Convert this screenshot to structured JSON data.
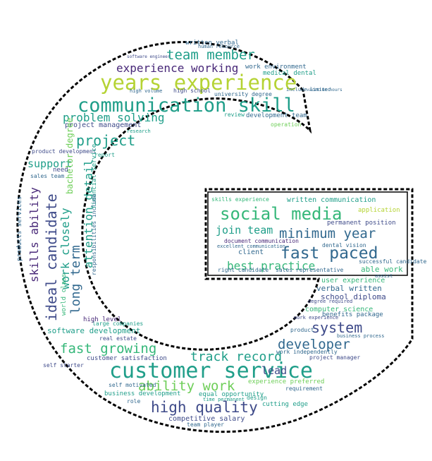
{
  "palette": {
    "yellowgreen": "#b5d334",
    "green": "#35b779",
    "teal": "#1f9e89",
    "blue": "#31688e",
    "navy": "#3e4a89",
    "purple": "#482878",
    "lime": "#6ece58"
  },
  "words": [
    {
      "text": "years experience",
      "color": "#b5d334"
    },
    {
      "text": "communication skill",
      "color": "#1f9e89"
    },
    {
      "text": "customer service",
      "color": "#1f9e89"
    },
    {
      "text": "social media",
      "color": "#35b779"
    },
    {
      "text": "fast paced",
      "color": "#31688e"
    },
    {
      "text": "team member",
      "color": "#1f9e89"
    },
    {
      "text": "experience working",
      "color": "#482878"
    },
    {
      "text": "high quality",
      "color": "#3e4a89"
    },
    {
      "text": "ability work",
      "color": "#6ece58"
    },
    {
      "text": "fast growing",
      "color": "#35b779"
    },
    {
      "text": "developer",
      "color": "#31688e"
    },
    {
      "text": "system",
      "color": "#3e4a89"
    },
    {
      "text": "track record",
      "color": "#1f9e89"
    },
    {
      "text": "minimum year",
      "color": "#31688e"
    },
    {
      "text": "join team",
      "color": "#1f9e89"
    },
    {
      "text": "best practice",
      "color": "#35b779"
    },
    {
      "text": "problem solving",
      "color": "#1f9e89"
    },
    {
      "text": "project",
      "color": "#1f9e89"
    },
    {
      "text": "ideal candidate",
      "color": "#3e4a89"
    },
    {
      "text": "long term",
      "color": "#31688e"
    },
    {
      "text": "work closely",
      "color": "#1f9e89"
    },
    {
      "text": "skills ability",
      "color": "#482878"
    },
    {
      "text": "attention detail",
      "color": "#1f9e89"
    },
    {
      "text": "support",
      "color": "#1f9e89"
    },
    {
      "text": "lead",
      "color": "#3e4a89"
    },
    {
      "text": "written verbal",
      "color": "#31688e"
    },
    {
      "text": "work environment",
      "color": "#31688e"
    },
    {
      "text": "medical dental",
      "color": "#1f9e89"
    },
    {
      "text": "project management",
      "color": "#3e4a89"
    },
    {
      "text": "development team",
      "color": "#31688e"
    },
    {
      "text": "software development",
      "color": "#1f9e89"
    },
    {
      "text": "competitive salary",
      "color": "#3e4a89"
    },
    {
      "text": "business development",
      "color": "#1f9e89"
    },
    {
      "text": "equal opportunity",
      "color": "#1f9e89"
    },
    {
      "text": "cutting edge",
      "color": "#1f9e89"
    },
    {
      "text": "team player",
      "color": "#31688e"
    },
    {
      "text": "written communication",
      "color": "#1f9e89"
    },
    {
      "text": "skills experience",
      "color": "#35b779"
    },
    {
      "text": "application",
      "color": "#b5d334"
    },
    {
      "text": "permanent position",
      "color": "#3e4a89"
    },
    {
      "text": "document communication",
      "color": "#482878"
    },
    {
      "text": "client",
      "color": "#31688e"
    },
    {
      "text": "dental vision",
      "color": "#31688e"
    },
    {
      "text": "able work",
      "color": "#35b779"
    },
    {
      "text": "user experience",
      "color": "#35b779"
    },
    {
      "text": "verbal written",
      "color": "#31688e"
    },
    {
      "text": "school diploma",
      "color": "#3e4a89"
    },
    {
      "text": "computer science",
      "color": "#35b779"
    },
    {
      "text": "benefits package",
      "color": "#31688e"
    },
    {
      "text": "customer satisfaction",
      "color": "#3e4a89"
    },
    {
      "text": "experience preferred",
      "color": "#6ece58"
    },
    {
      "text": "work independently",
      "color": "#31688e"
    },
    {
      "text": "project manager",
      "color": "#3e4a89"
    },
    {
      "text": "high school",
      "color": "#3e4a89"
    },
    {
      "text": "university degree",
      "color": "#31688e"
    },
    {
      "text": "review",
      "color": "#1f9e89"
    },
    {
      "text": "operation",
      "color": "#6ece58"
    },
    {
      "text": "product development",
      "color": "#3e4a89"
    },
    {
      "text": "report",
      "color": "#1f9e89"
    },
    {
      "text": "need",
      "color": "#3e4a89"
    },
    {
      "text": "sales team",
      "color": "#31688e"
    },
    {
      "text": "bachelor degree",
      "color": "#6ece58"
    },
    {
      "text": "financial service",
      "color": "#1f9e89"
    },
    {
      "text": "responsibilities include",
      "color": "#31688e"
    },
    {
      "text": "real estate",
      "color": "#3e4a89"
    },
    {
      "text": "large companies",
      "color": "#1f9e89"
    },
    {
      "text": "high level",
      "color": "#482878"
    },
    {
      "text": "world class",
      "color": "#35b779"
    },
    {
      "text": "self motivated",
      "color": "#31688e"
    },
    {
      "text": "self starter",
      "color": "#3e4a89"
    },
    {
      "text": "role",
      "color": "#31688e"
    },
    {
      "text": "design",
      "color": "#1f9e89"
    },
    {
      "text": "requirement",
      "color": "#31688e"
    },
    {
      "text": "product",
      "color": "#31688e"
    },
    {
      "text": "work experience",
      "color": "#3e4a89"
    },
    {
      "text": "degree required",
      "color": "#3e4a89"
    },
    {
      "text": "human resource",
      "color": "#31688e"
    },
    {
      "text": "software engineer",
      "color": "#3e4a89"
    },
    {
      "text": "sales representative",
      "color": "#31688e"
    },
    {
      "text": "right candidate",
      "color": "#31688e"
    },
    {
      "text": "excellent communication",
      "color": "#31688e"
    },
    {
      "text": "products services",
      "color": "#31688e"
    },
    {
      "text": "include limited",
      "color": "#31688e"
    },
    {
      "text": "vacation hours",
      "color": "#31688e"
    },
    {
      "text": "successful candidate",
      "color": "#31688e"
    },
    {
      "text": "assist",
      "color": "#31688e"
    },
    {
      "text": "business process",
      "color": "#31688e"
    },
    {
      "text": "time permanent",
      "color": "#1f9e89"
    },
    {
      "text": "high volume",
      "color": "#31688e"
    },
    {
      "text": "research",
      "color": "#1f9e89"
    }
  ]
}
